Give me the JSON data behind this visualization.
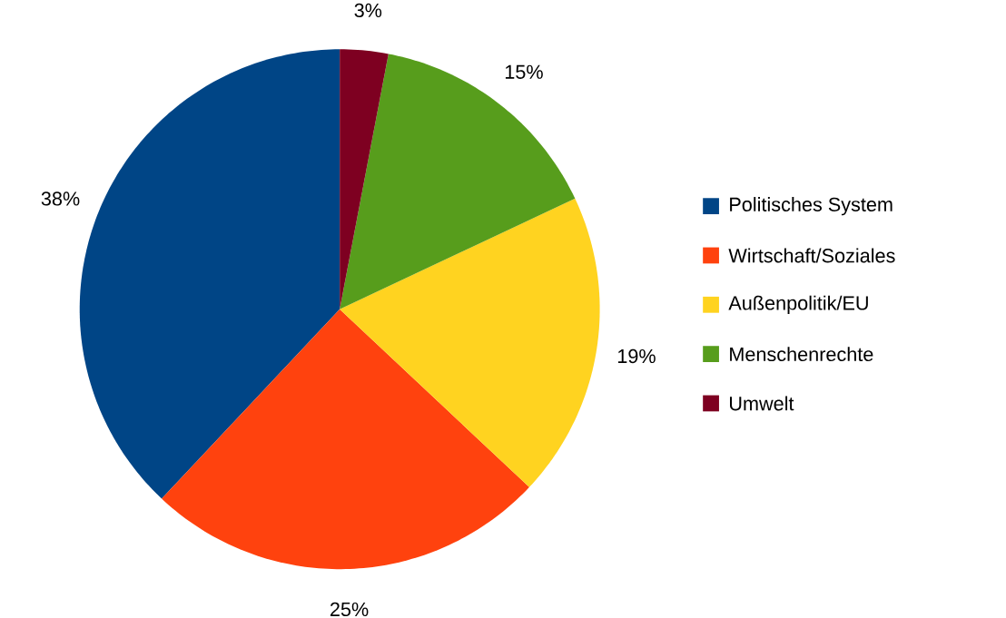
{
  "chart_data": {
    "type": "pie",
    "categories": [
      "Politisches System",
      "Wirtschaft/Soziales",
      "Außenpolitik/EU",
      "Menschenrechte",
      "Umwelt"
    ],
    "values": [
      38,
      25,
      19,
      15,
      3
    ],
    "value_labels": [
      "38%",
      "25%",
      "19%",
      "15%",
      "3%"
    ],
    "colors": [
      "#004586",
      "#ff420e",
      "#ffd320",
      "#579d1c",
      "#7e0021"
    ],
    "legend": "right"
  }
}
